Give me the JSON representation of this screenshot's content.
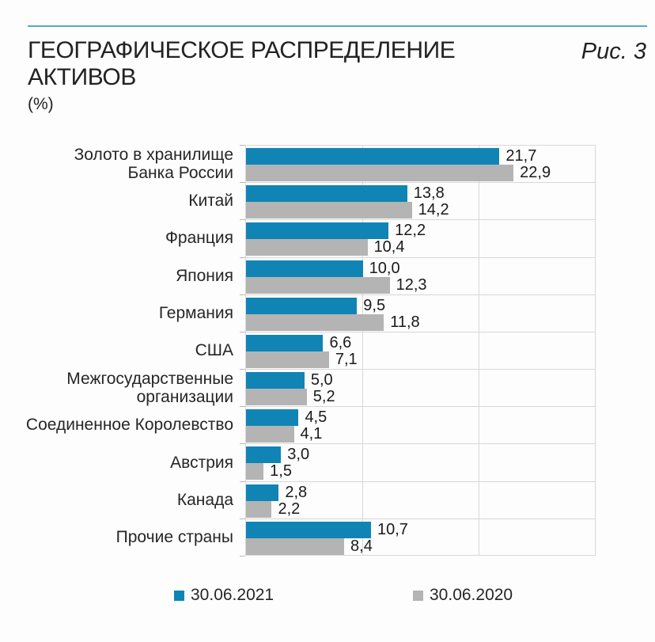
{
  "chart_data": {
    "type": "bar",
    "orientation": "horizontal",
    "title": "ГЕОГРАФИЧЕСКОЕ РАСПРЕДЕЛЕНИЕ АКТИВОВ",
    "title_lines": [
      "ГЕОГРАФИЧЕСКОЕ РАСПРЕДЕЛЕНИЕ",
      "АКТИВОВ"
    ],
    "unit_label": "(%)",
    "figure_label": "Рис. 3",
    "categories": [
      "Золото в хранилище\nБанка России",
      "Китай",
      "Франция",
      "Япония",
      "Германия",
      "США",
      "Межгосударственные\nорганизации",
      "Соединенное Королевство",
      "Австрия",
      "Канада",
      "Прочие страны"
    ],
    "series": [
      {
        "name": "30.06.2021",
        "color": "#1085b5",
        "values": [
          21.7,
          13.8,
          12.2,
          10.0,
          9.5,
          6.6,
          5.0,
          4.5,
          3.0,
          2.8,
          10.7
        ],
        "labels": [
          "21,7",
          "13,8",
          "12,2",
          "10,0",
          "9,5",
          "6,6",
          "5,0",
          "4,5",
          "3,0",
          "2,8",
          "10,7"
        ]
      },
      {
        "name": "30.06.2020",
        "color": "#b4b4b5",
        "values": [
          22.9,
          14.2,
          10.4,
          12.3,
          11.8,
          7.1,
          5.2,
          4.1,
          1.5,
          2.2,
          8.4
        ],
        "labels": [
          "22,9",
          "14,2",
          "10,4",
          "12,3",
          "11,8",
          "7,1",
          "5,2",
          "4,1",
          "1,5",
          "2,2",
          "8,4"
        ]
      }
    ],
    "xlim": [
      0,
      30
    ],
    "x_gridlines": [
      10,
      20
    ],
    "grid": true,
    "legend_position": "bottom",
    "accent_rule_color": "#57a9c8",
    "gridline_color": "#d7d7d7"
  }
}
